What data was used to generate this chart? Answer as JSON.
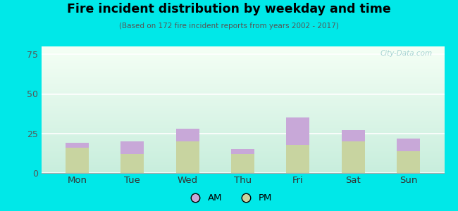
{
  "title": "Fire incident distribution by weekday and time",
  "subtitle": "(Based on 172 fire incident reports from years 2002 - 2017)",
  "categories": [
    "Mon",
    "Tue",
    "Wed",
    "Thu",
    "Fri",
    "Sat",
    "Sun"
  ],
  "pm_values": [
    16,
    12,
    20,
    12,
    18,
    20,
    14
  ],
  "am_values": [
    3,
    8,
    8,
    3,
    17,
    7,
    8
  ],
  "am_color": "#c8a8d8",
  "pm_color": "#c8d4a0",
  "ylim": [
    0,
    80
  ],
  "yticks": [
    0,
    25,
    50,
    75
  ],
  "bg_color": "#00e8e8",
  "watermark": "City-Data.com",
  "bar_width": 0.42,
  "gradient_top_color": "#f5fff5",
  "gradient_bottom_color": "#c8eedd"
}
